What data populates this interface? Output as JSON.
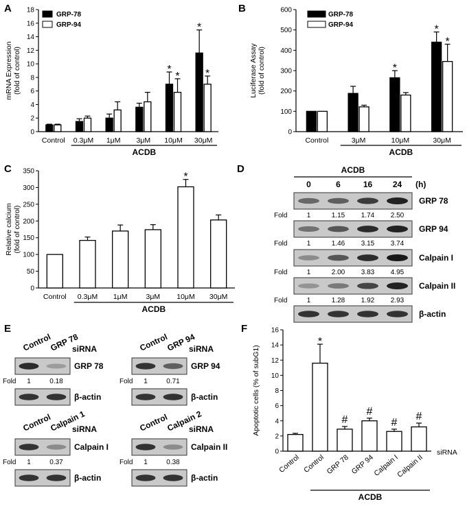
{
  "colors": {
    "black_bar": "#000000",
    "white_bar": "#ffffff",
    "blot_bg": "#c9c9c9",
    "band": "#1e1e1e"
  },
  "chart_data": [
    {
      "panel": "A",
      "type": "bar",
      "ylabel_line1": "mRNA Expression",
      "ylabel_line2": "(fold of control)",
      "ylim": [
        0,
        18
      ],
      "yticks": [
        0,
        2,
        4,
        6,
        8,
        10,
        12,
        14,
        16,
        18
      ],
      "categories": [
        "Control",
        "0.3μM",
        "1μM",
        "3μM",
        "10μM",
        "30μM"
      ],
      "group_label": "ACDB",
      "series": [
        {
          "name": "GRP-78",
          "values": [
            1.0,
            1.5,
            2.0,
            3.6,
            7.0,
            11.6
          ],
          "errors": [
            0.1,
            0.4,
            0.6,
            0.6,
            1.8,
            3.4
          ],
          "stars": [
            false,
            false,
            false,
            false,
            true,
            true
          ]
        },
        {
          "name": "GRP-94",
          "values": [
            1.0,
            2.0,
            3.2,
            4.4,
            5.8,
            7.0
          ],
          "errors": [
            0.1,
            0.3,
            1.2,
            1.4,
            2.0,
            1.2
          ],
          "stars": [
            false,
            false,
            false,
            false,
            true,
            true
          ]
        }
      ],
      "star_symbol": "*"
    },
    {
      "panel": "B",
      "type": "bar",
      "ylabel_line1": "Luciferase Assay",
      "ylabel_line2": "(fold of control)",
      "ylim": [
        0,
        600
      ],
      "yticks": [
        0,
        100,
        200,
        300,
        400,
        500,
        600
      ],
      "categories": [
        "Control",
        "3μM",
        "10μM",
        "30μM"
      ],
      "group_label": "ACDB",
      "series": [
        {
          "name": "GRP-78",
          "values": [
            100,
            188,
            265,
            440
          ],
          "errors": [
            0,
            35,
            35,
            50
          ],
          "stars": [
            false,
            false,
            true,
            true
          ]
        },
        {
          "name": "GRP-94",
          "values": [
            100,
            122,
            180,
            345
          ],
          "errors": [
            0,
            8,
            12,
            85
          ],
          "stars": [
            false,
            false,
            false,
            true
          ]
        }
      ],
      "star_symbol": "*"
    },
    {
      "panel": "C",
      "type": "bar",
      "ylabel_line1": "Relative calcium",
      "ylabel_line2": "(fold of control)",
      "ylim": [
        0,
        350
      ],
      "yticks": [
        0,
        50,
        100,
        150,
        200,
        250,
        300,
        350
      ],
      "categories": [
        "Control",
        "0.3μM",
        "1μM",
        "3μM",
        "10μM",
        "30μM"
      ],
      "group_label": "ACDB",
      "series": [
        {
          "values": [
            100,
            142,
            170,
            174,
            302,
            203
          ],
          "errors": [
            0,
            10,
            18,
            15,
            22,
            15
          ],
          "stars": [
            false,
            false,
            false,
            false,
            true,
            false
          ]
        }
      ],
      "star_symbol": "*"
    },
    {
      "panel": "F",
      "type": "bar",
      "ylabel_line1": "Apoptotic cells  (% of subG1)",
      "ylim": [
        0,
        16
      ],
      "yticks": [
        0,
        2,
        4,
        6,
        8,
        10,
        12,
        14,
        16
      ],
      "categories": [
        "Control",
        "Control",
        "GRP 78",
        "GRP 94",
        "Calpain I",
        "Calpain II"
      ],
      "siRNA_label": "siRNA",
      "group_label": "ACDB",
      "series": [
        {
          "values": [
            2.2,
            11.6,
            2.9,
            4.0,
            2.6,
            3.2
          ],
          "errors": [
            0.15,
            2.5,
            0.35,
            0.35,
            0.3,
            0.5
          ],
          "marks": [
            "",
            "*",
            "#",
            "#",
            "#",
            "#"
          ]
        }
      ]
    }
  ],
  "panelD": {
    "label": "D",
    "header": "ACDB",
    "lanes": [
      "0",
      "6",
      "16",
      "24"
    ],
    "unit": "(h)",
    "fold_label": "Fold",
    "blots": [
      {
        "name": "GRP 78",
        "folds": [
          "1",
          "1.15",
          "1.74",
          "2.50"
        ],
        "intensity": [
          0.55,
          0.6,
          0.8,
          0.95
        ]
      },
      {
        "name": "GRP 94",
        "folds": [
          "1",
          "1.46",
          "3.15",
          "3.74"
        ],
        "intensity": [
          0.5,
          0.65,
          0.9,
          0.95
        ]
      },
      {
        "name": "Calpain I",
        "folds": [
          "1",
          "2.00",
          "3.83",
          "4.95"
        ],
        "intensity": [
          0.35,
          0.65,
          0.9,
          1.0
        ]
      },
      {
        "name": "Calpain II",
        "folds": [
          "1",
          "1.28",
          "1.92",
          "2.93"
        ],
        "intensity": [
          0.3,
          0.45,
          0.75,
          0.95
        ]
      },
      {
        "name": "β-actin",
        "folds": [],
        "intensity": [
          0.85,
          0.85,
          0.85,
          0.85
        ]
      }
    ]
  },
  "panelE": {
    "label": "E",
    "fold_label": "Fold",
    "siRNA_label": "siRNA",
    "groups": [
      {
        "lanes": [
          "Control",
          "GRP 78"
        ],
        "target": "GRP 78",
        "folds": [
          "1",
          "0.18"
        ],
        "loading": "β-actin",
        "intensity": [
          0.9,
          0.25
        ]
      },
      {
        "lanes": [
          "Control",
          "GRP 94"
        ],
        "target": "GRP 94",
        "folds": [
          "1",
          "0.71"
        ],
        "loading": "β-actin",
        "intensity": [
          0.85,
          0.6
        ]
      },
      {
        "lanes": [
          "Control",
          "Calpain 1"
        ],
        "target": "Calpain I",
        "folds": [
          "1",
          "0.37"
        ],
        "loading": "β-actin",
        "intensity": [
          0.85,
          0.35
        ]
      },
      {
        "lanes": [
          "Control",
          "Calpain 2"
        ],
        "target": "Calpain II",
        "folds": [
          "1",
          "0.38"
        ],
        "loading": "β-actin",
        "intensity": [
          0.85,
          0.35
        ]
      }
    ]
  }
}
